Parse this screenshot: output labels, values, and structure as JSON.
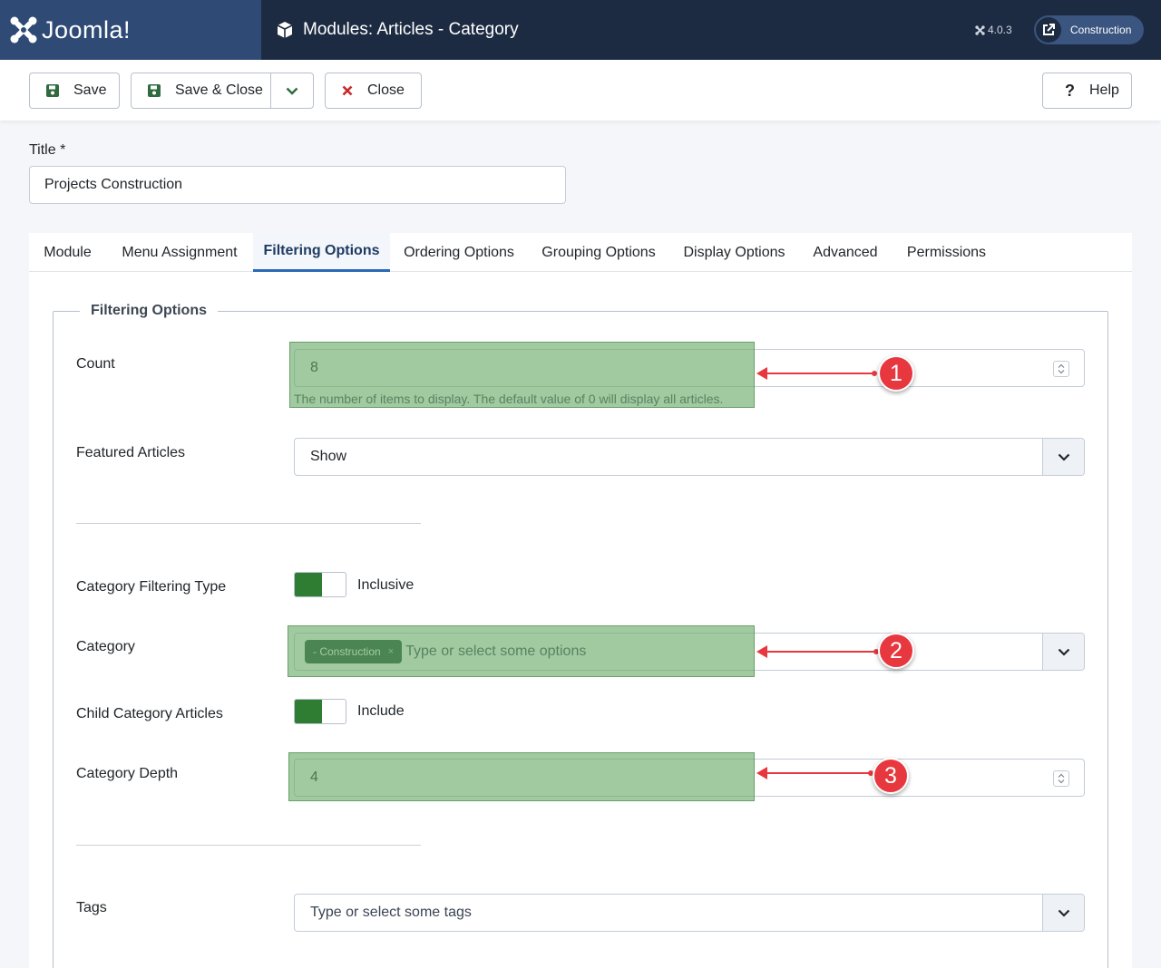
{
  "header": {
    "brand": "Joomla!",
    "title": "Modules: Articles - Category",
    "version": "4.0.3",
    "site_button": "Construction"
  },
  "toolbar": {
    "save_label": "Save",
    "save_close_label": "Save & Close",
    "close_label": "Close",
    "help_label": "Help"
  },
  "title_field": {
    "label": "Title *",
    "value": "Projects Construction"
  },
  "tabs": [
    {
      "label": "Module"
    },
    {
      "label": "Menu Assignment"
    },
    {
      "label": "Filtering Options",
      "active": true
    },
    {
      "label": "Ordering Options"
    },
    {
      "label": "Grouping Options"
    },
    {
      "label": "Display Options"
    },
    {
      "label": "Advanced"
    },
    {
      "label": "Permissions"
    }
  ],
  "filtering": {
    "legend": "Filtering Options",
    "count": {
      "label": "Count",
      "value": "8",
      "help": "The number of items to display. The default value of 0 will display all articles."
    },
    "featured": {
      "label": "Featured Articles",
      "value": "Show"
    },
    "category_filtering_type": {
      "label": "Category Filtering Type",
      "value": "Inclusive"
    },
    "category": {
      "label": "Category",
      "chip": "- Construction",
      "placeholder": "Type or select some options"
    },
    "child_category": {
      "label": "Child Category Articles",
      "value": "Include"
    },
    "category_depth": {
      "label": "Category Depth",
      "value": "4"
    },
    "tags": {
      "label": "Tags",
      "placeholder": "Type or select some tags"
    }
  },
  "annotations": [
    "1",
    "2",
    "3"
  ],
  "colors": {
    "header_bg": "#1d2b42",
    "logo_bg": "#2e4a75",
    "switch_on": "#2f7d32",
    "chip_bg": "#1d4a32",
    "annotation_red": "#e8383f",
    "highlight_green": "#68aa68"
  }
}
